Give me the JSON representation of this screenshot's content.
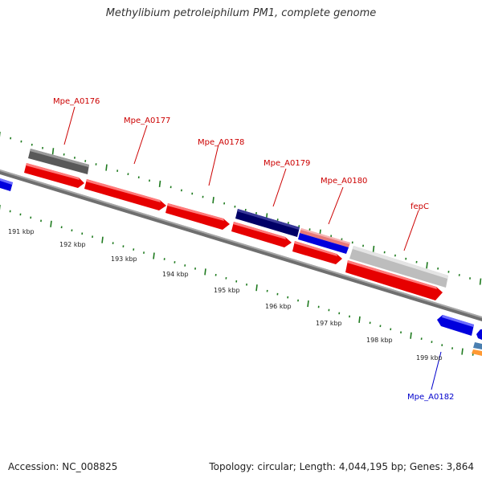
{
  "title": "Methylibium petroleiphilum PM1, complete genome",
  "footer": {
    "accession": "Accession: NC_008825",
    "topology": "Topology: circular; Length: 4,044,195 bp; Genes: 3,864"
  },
  "colors": {
    "backbone": "#888888",
    "tick": "#1e7a1e",
    "forward_gene": "#ff0000",
    "reverse_gene": "#0000ff",
    "label_forward": "#cc0000",
    "label_reverse": "#0000cc",
    "dark_gray_feature": "#666666",
    "navy_feature": "#000066",
    "light_gray_feature": "#c8c8c8",
    "pink_feature": "#e87878",
    "orange_feature": "#ff9933",
    "steelblue_feature": "#4a7fb0"
  },
  "scale": {
    "labels": [
      {
        "name": "kbp-label-191",
        "text": "191 kbp"
      },
      {
        "name": "kbp-label-192",
        "text": "192 kbp"
      },
      {
        "name": "kbp-label-193",
        "text": "193 kbp"
      },
      {
        "name": "kbp-label-194",
        "text": "194 kbp"
      },
      {
        "name": "kbp-label-195",
        "text": "195 kbp"
      },
      {
        "name": "kbp-label-196",
        "text": "196 kbp"
      },
      {
        "name": "kbp-label-197",
        "text": "197 kbp"
      },
      {
        "name": "kbp-label-198",
        "text": "198 kbp"
      },
      {
        "name": "kbp-label-199",
        "text": "199 kbp"
      }
    ]
  },
  "gene_labels": [
    {
      "name": "gene-label-mpe-a0176",
      "text": "Mpe_A0176",
      "strand": "forward"
    },
    {
      "name": "gene-label-mpe-a0177",
      "text": "Mpe_A0177",
      "strand": "forward"
    },
    {
      "name": "gene-label-mpe-a0178",
      "text": "Mpe_A0178",
      "strand": "forward"
    },
    {
      "name": "gene-label-mpe-a0179",
      "text": "Mpe_A0179",
      "strand": "forward"
    },
    {
      "name": "gene-label-mpe-a0180",
      "text": "Mpe_A0180",
      "strand": "forward"
    },
    {
      "name": "gene-label-fepc",
      "text": "fepC",
      "strand": "forward"
    },
    {
      "name": "gene-label-mpe-a0182",
      "text": "Mpe_A0182",
      "strand": "reverse"
    }
  ]
}
